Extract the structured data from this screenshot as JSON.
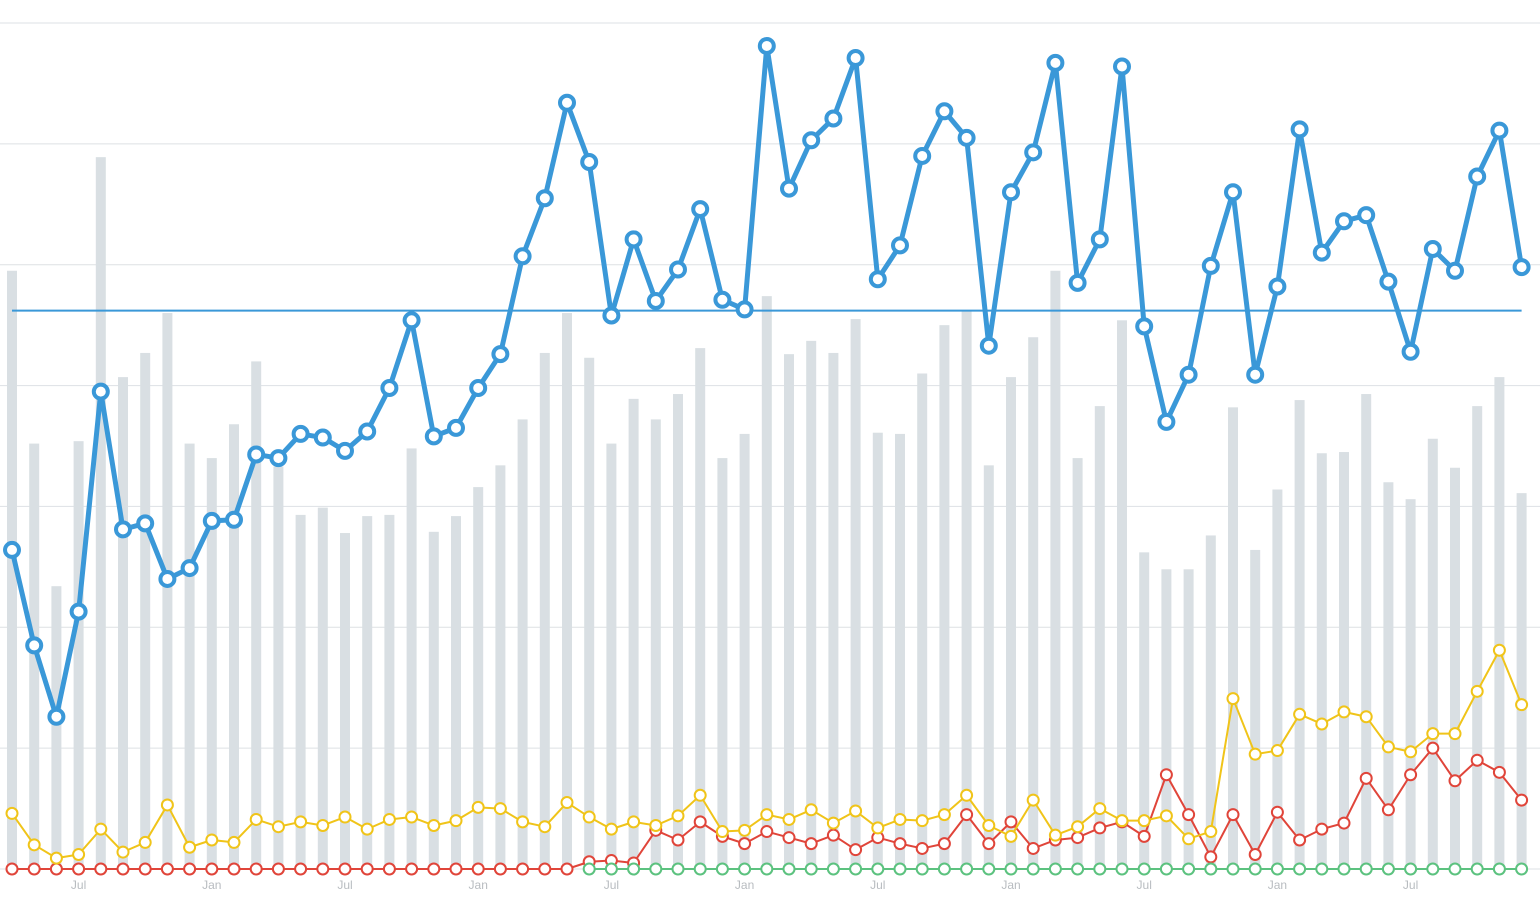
{
  "chart_data": {
    "type": "combo",
    "categories": [
      null,
      null,
      null,
      "Jul",
      null,
      null,
      null,
      null,
      null,
      "Jan",
      null,
      null,
      null,
      null,
      null,
      "Jul",
      null,
      null,
      null,
      null,
      null,
      "Jan",
      null,
      null,
      null,
      null,
      null,
      "Jul",
      null,
      null,
      null,
      null,
      null,
      "Jan",
      null,
      null,
      null,
      null,
      null,
      "Jul",
      null,
      null,
      null,
      null,
      null,
      "Jan",
      null,
      null,
      null,
      null,
      null,
      "Jul",
      null,
      null,
      null,
      null,
      null,
      "Jan",
      null,
      null,
      null,
      null,
      null,
      "Jul",
      null,
      null,
      null,
      null,
      null
    ],
    "ylim": [
      0,
      70
    ],
    "yticks": [
      0,
      10,
      20,
      30,
      40,
      50,
      60,
      70
    ],
    "grid": true,
    "hline": {
      "value": 46.2,
      "color": "#3a98d8"
    },
    "series": [
      {
        "type": "bar",
        "color": "#d9dfe3",
        "values": [
          49.5,
          35.2,
          23.4,
          35.4,
          58.9,
          40.7,
          42.7,
          46.0,
          35.2,
          34.0,
          36.8,
          42.0,
          33.3,
          29.3,
          29.9,
          27.8,
          29.2,
          29.3,
          34.8,
          27.9,
          29.2,
          31.6,
          33.4,
          37.2,
          42.7,
          46.0,
          42.3,
          35.2,
          38.9,
          37.2,
          39.3,
          43.1,
          34.0,
          36.0,
          47.4,
          42.6,
          43.7,
          42.7,
          45.5,
          36.1,
          36.0,
          41.0,
          45.0,
          46.2,
          33.4,
          40.7,
          44.0,
          49.5,
          34.0,
          38.3,
          45.4,
          26.2,
          24.8,
          24.8,
          27.6,
          38.2,
          26.4,
          31.4,
          38.8,
          34.4,
          34.5,
          39.3,
          32.0,
          30.6,
          35.6,
          33.2,
          38.3,
          40.7,
          31.1
        ]
      },
      {
        "type": "line",
        "color": "#3a98d8",
        "width": 5,
        "values": [
          26.4,
          18.5,
          12.6,
          21.3,
          39.5,
          28.1,
          28.6,
          24.0,
          24.9,
          28.8,
          28.9,
          34.3,
          34.0,
          36.0,
          35.7,
          34.6,
          36.2,
          39.8,
          45.4,
          35.8,
          36.5,
          39.8,
          42.6,
          50.7,
          55.5,
          63.4,
          58.5,
          45.8,
          52.1,
          47.0,
          49.6,
          54.6,
          47.1,
          46.3,
          68.1,
          56.3,
          60.3,
          62.1,
          67.1,
          48.8,
          51.6,
          59.0,
          62.7,
          60.5,
          43.3,
          56.0,
          59.3,
          66.7,
          48.5,
          52.1,
          66.4,
          44.9,
          37.0,
          40.9,
          49.9,
          56.0,
          40.9,
          48.2,
          61.2,
          51.0,
          53.6,
          54.1,
          48.6,
          42.8,
          51.3,
          49.5,
          57.3,
          61.1,
          49.8
        ]
      },
      {
        "type": "line",
        "color": "#f0c419",
        "width": 2,
        "values": [
          4.6,
          2.0,
          0.9,
          1.2,
          3.3,
          1.4,
          2.2,
          5.3,
          1.8,
          2.4,
          2.2,
          4.1,
          3.5,
          3.9,
          3.6,
          4.3,
          3.3,
          4.1,
          4.3,
          3.6,
          4.0,
          5.1,
          5.0,
          3.9,
          3.5,
          5.5,
          4.3,
          3.3,
          3.9,
          3.6,
          4.4,
          6.1,
          3.1,
          3.2,
          4.5,
          4.1,
          4.9,
          3.8,
          4.8,
          3.4,
          4.1,
          4.0,
          4.5,
          6.1,
          3.6,
          2.7,
          5.7,
          2.8,
          3.5,
          5.0,
          4.0,
          4.0,
          4.4,
          2.5,
          3.1,
          14.1,
          9.5,
          9.8,
          12.8,
          12.0,
          13.0,
          12.6,
          10.1,
          9.7,
          11.2,
          11.2,
          14.7,
          18.1,
          13.6
        ]
      },
      {
        "type": "line",
        "color": "#5cc27f",
        "width": 2,
        "values": [
          null,
          null,
          null,
          null,
          null,
          null,
          null,
          null,
          null,
          null,
          null,
          null,
          null,
          null,
          null,
          null,
          null,
          null,
          null,
          null,
          null,
          null,
          null,
          null,
          null,
          null,
          0,
          0,
          0,
          0,
          0,
          0,
          0,
          0,
          0,
          0,
          0,
          0,
          0,
          0,
          0,
          0,
          0,
          0,
          0,
          0,
          0,
          0,
          0,
          0,
          0,
          0,
          0,
          0,
          0,
          0,
          0,
          0,
          0,
          0,
          0,
          0,
          0,
          0,
          0,
          0,
          0,
          0,
          0
        ]
      },
      {
        "type": "line",
        "color": "#e0453a",
        "width": 2,
        "values": [
          0,
          0,
          0,
          0,
          0,
          0,
          0,
          0,
          0,
          0,
          0,
          0,
          0,
          0,
          0,
          0,
          0,
          0,
          0,
          0,
          0,
          0,
          0,
          0,
          0,
          0,
          0.6,
          0.7,
          0.5,
          3.2,
          2.4,
          3.9,
          2.7,
          2.1,
          3.1,
          2.6,
          2.1,
          2.8,
          1.6,
          2.6,
          2.1,
          1.7,
          2.1,
          4.5,
          2.1,
          3.9,
          1.7,
          2.4,
          2.6,
          3.4,
          3.9,
          2.7,
          7.8,
          4.5,
          1.0,
          4.5,
          1.2,
          4.7,
          2.4,
          3.3,
          3.8,
          7.5,
          4.9,
          7.8,
          10.0,
          7.3,
          9.0,
          8.0,
          5.7
        ]
      }
    ]
  }
}
